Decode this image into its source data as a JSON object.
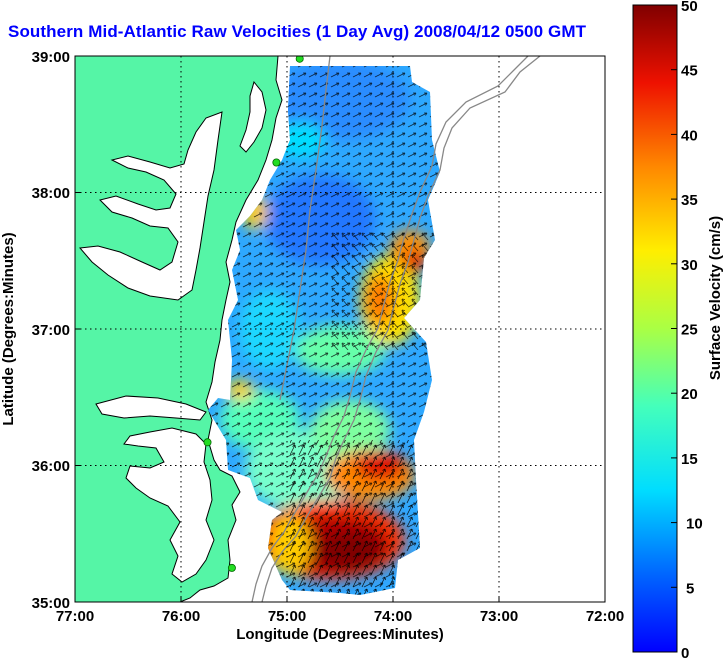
{
  "title": "Southern Mid-Atlantic Raw Velocities (1 Day Avg) 2008/04/12 0500 GMT",
  "x_axis": {
    "label": "Longitude (Degrees:Minutes)",
    "ticks": [
      "77:00",
      "76:00",
      "75:00",
      "74:00",
      "73:00",
      "72:00"
    ]
  },
  "y_axis": {
    "label": "Latitude (Degrees:Minutes)",
    "ticks": [
      "39:00",
      "38:00",
      "37:00",
      "36:00",
      "35:00"
    ]
  },
  "colorbar": {
    "label": "Surface Velocity (cm/s)",
    "ticks": [
      "50",
      "45",
      "40",
      "35",
      "30",
      "25",
      "20",
      "15",
      "10",
      "5",
      "0"
    ],
    "min": 0,
    "max": 50,
    "colormap": "jet"
  },
  "map_extent": {
    "lon_min": -77,
    "lon_max": -72,
    "lat_min": 35,
    "lat_max": 39
  },
  "grid": "dotted",
  "colors": {
    "title": "#0000ff",
    "land": "#55f5a6",
    "coast": "#000000",
    "bathymetry": "#888888",
    "station": "#22dd22"
  },
  "stations": [
    {
      "lon": -74.88,
      "lat": 38.98
    },
    {
      "lon": -75.1,
      "lat": 38.22
    },
    {
      "lon": -75.75,
      "lat": 36.17
    },
    {
      "lon": -75.52,
      "lat": 35.25
    }
  ]
}
